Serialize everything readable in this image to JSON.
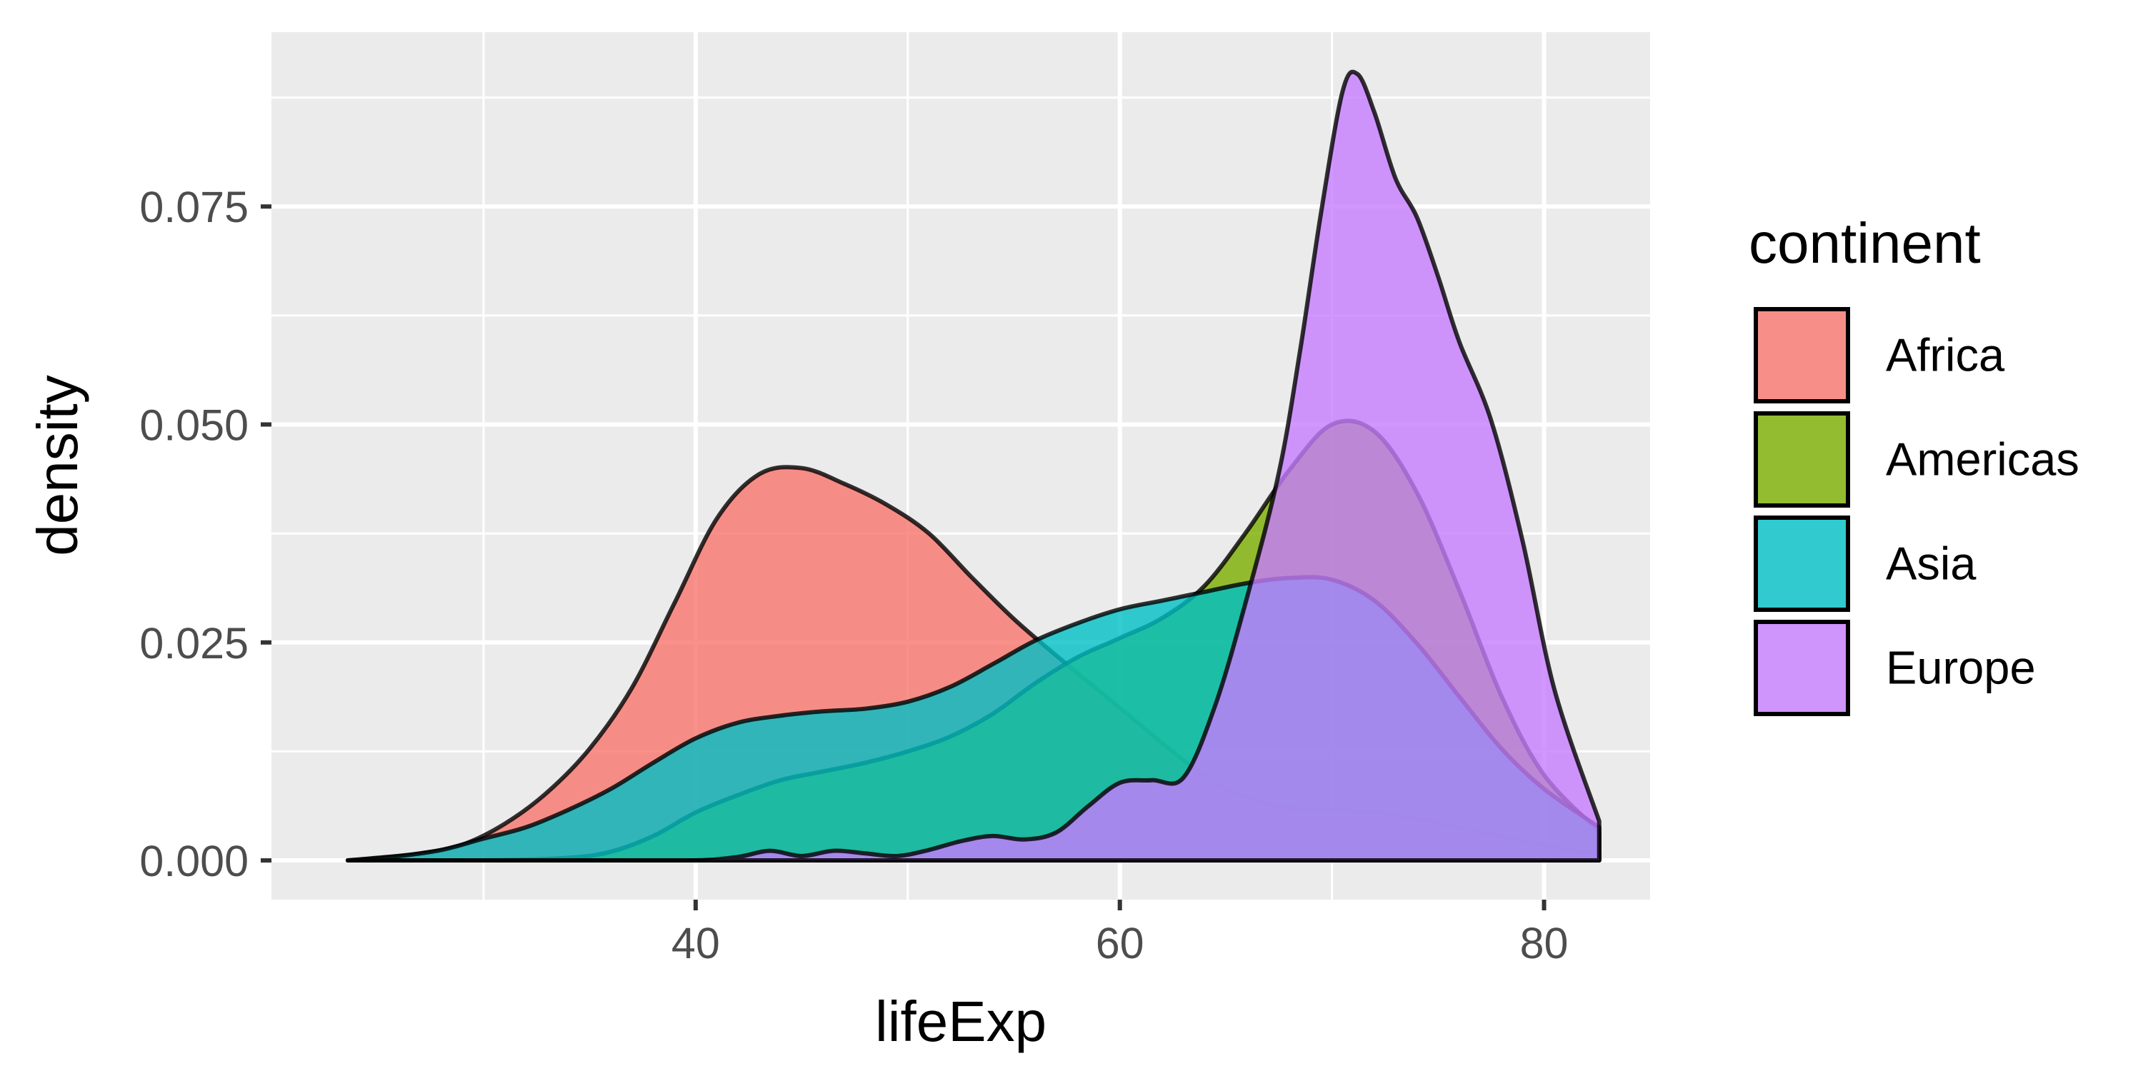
{
  "chart_data": {
    "type": "area",
    "subtype": "density",
    "title": "",
    "xlabel": "lifeExp",
    "ylabel": "density",
    "xlim": [
      20,
      85
    ],
    "ylim": [
      -0.0045,
      0.095
    ],
    "x_ticks": [
      40,
      60,
      80
    ],
    "x_tick_labels": [
      "40",
      "60",
      "80"
    ],
    "y_ticks": [
      0.0,
      0.025,
      0.05,
      0.075
    ],
    "y_tick_labels": [
      "0.000",
      "0.025",
      "0.050",
      "0.075"
    ],
    "grid": true,
    "panel_background": "#EBEBEB",
    "fill_opacity": 0.8,
    "legend": {
      "title": "continent",
      "position": "right",
      "entries": [
        "Africa",
        "Americas",
        "Asia",
        "Europe"
      ]
    },
    "series": [
      {
        "name": "Africa",
        "color": "#F8766D",
        "x": [
          23.6,
          25,
          27,
          29,
          31,
          33,
          35,
          37,
          39,
          41,
          43,
          45,
          47,
          49,
          51,
          53,
          55,
          57,
          59,
          61,
          63,
          65,
          67,
          69,
          71,
          73,
          75,
          77,
          79,
          81,
          82.6
        ],
        "y": [
          0.0,
          0.0003,
          0.0008,
          0.0018,
          0.0042,
          0.0078,
          0.0128,
          0.0198,
          0.0295,
          0.0392,
          0.0443,
          0.045,
          0.0432,
          0.0408,
          0.0375,
          0.0325,
          0.0277,
          0.0235,
          0.0195,
          0.0155,
          0.0115,
          0.0082,
          0.0065,
          0.0058,
          0.0057,
          0.0052,
          0.0043,
          0.0033,
          0.0022,
          0.0013,
          0.0008
        ]
      },
      {
        "name": "Americas",
        "color": "#7CAE00",
        "x": [
          23.6,
          30,
          34,
          36,
          38,
          40,
          42,
          44,
          46,
          48,
          50,
          52,
          54,
          56,
          58,
          60,
          62,
          64,
          66,
          68,
          70,
          72,
          74,
          76,
          78,
          80,
          82.6
        ],
        "y": [
          0.0,
          0.0,
          0.0003,
          0.001,
          0.0028,
          0.0055,
          0.0075,
          0.0092,
          0.0102,
          0.0112,
          0.0125,
          0.0142,
          0.0168,
          0.0203,
          0.0233,
          0.0255,
          0.0278,
          0.0315,
          0.0378,
          0.0448,
          0.05,
          0.0492,
          0.0422,
          0.031,
          0.0188,
          0.0098,
          0.0033
        ]
      },
      {
        "name": "Asia",
        "color": "#00BFC4",
        "x": [
          23.6,
          26,
          28,
          30,
          32,
          34,
          36,
          38,
          40,
          42,
          44,
          46,
          48,
          50,
          52,
          54,
          56,
          58,
          60,
          62,
          64,
          66,
          68,
          70,
          72,
          74,
          76,
          78,
          80,
          82.6
        ],
        "y": [
          0.0,
          0.0005,
          0.0012,
          0.0025,
          0.0038,
          0.0058,
          0.0082,
          0.0112,
          0.014,
          0.0158,
          0.0166,
          0.0171,
          0.0174,
          0.0182,
          0.0199,
          0.0225,
          0.0252,
          0.0272,
          0.0288,
          0.0298,
          0.0308,
          0.0318,
          0.0324,
          0.0322,
          0.0298,
          0.0249,
          0.0188,
          0.0128,
          0.0082,
          0.0038
        ]
      },
      {
        "name": "Europe",
        "color": "#C77CFF",
        "x": [
          23.6,
          36,
          40,
          42,
          43.5,
          45,
          46.5,
          48,
          49.5,
          51,
          52.5,
          54,
          55.5,
          57,
          58.5,
          60,
          61.5,
          63,
          64.5,
          66,
          67.5,
          68.5,
          69.5,
          70.5,
          71.2,
          72,
          73,
          74,
          75,
          76,
          77.5,
          79,
          80.5,
          82.6
        ],
        "y": [
          0.0,
          0.0,
          0.0,
          0.0004,
          0.0011,
          0.0005,
          0.0011,
          0.0008,
          0.0005,
          0.0012,
          0.0022,
          0.0028,
          0.0024,
          0.0032,
          0.0062,
          0.0089,
          0.0092,
          0.0095,
          0.0178,
          0.0302,
          0.0445,
          0.0585,
          0.0745,
          0.0882,
          0.0902,
          0.0858,
          0.0782,
          0.0738,
          0.067,
          0.0595,
          0.0505,
          0.0365,
          0.0195,
          0.0045
        ]
      }
    ]
  }
}
